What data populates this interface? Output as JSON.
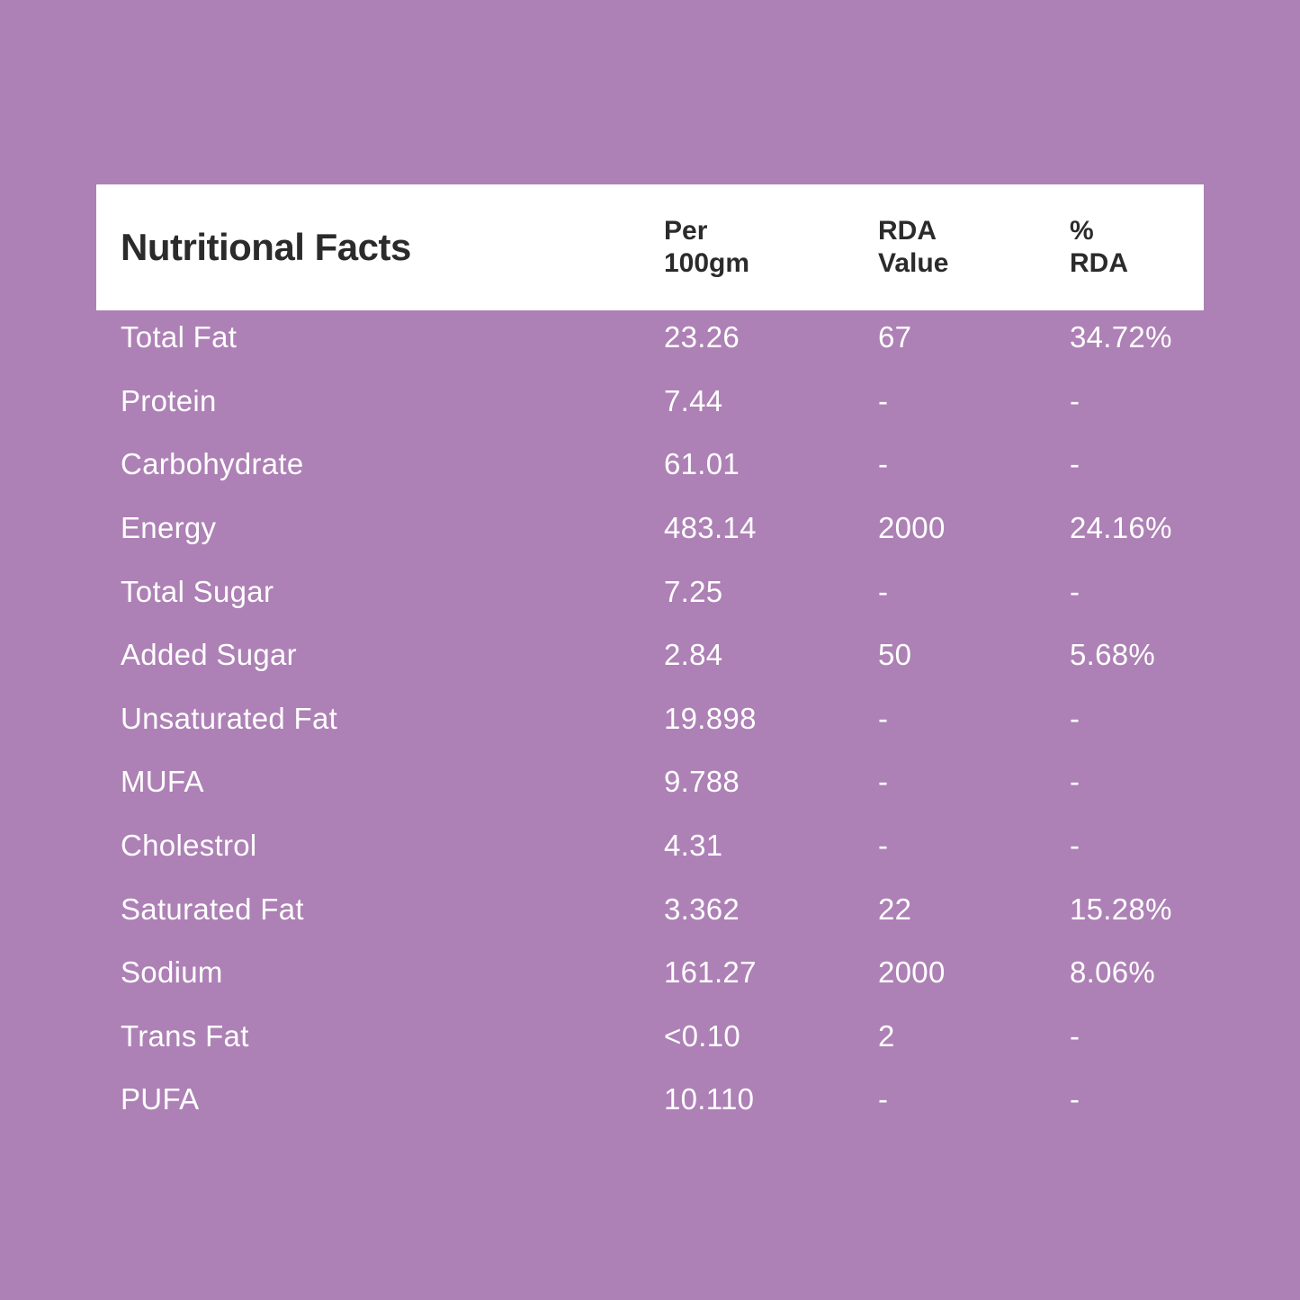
{
  "page": {
    "background_color": "#AD81B5",
    "header_bg_color": "#FFFFFF",
    "header_text_color": "#2B2B2B",
    "row_text_color": "#FFFFFF"
  },
  "table": {
    "title": "Nutritional Facts",
    "columns": [
      {
        "label": "Per\n100gm"
      },
      {
        "label": "RDA\nValue"
      },
      {
        "label": "%\nRDA"
      }
    ],
    "rows": [
      {
        "label": "Total Fat",
        "per_100gm": "23.26",
        "rda_value": "67",
        "pct_rda": "34.72%"
      },
      {
        "label": "Protein",
        "per_100gm": "7.44",
        "rda_value": "-",
        "pct_rda": "-"
      },
      {
        "label": "Carbohydrate",
        "per_100gm": "61.01",
        "rda_value": "-",
        "pct_rda": "-"
      },
      {
        "label": "Energy",
        "per_100gm": "483.14",
        "rda_value": "2000",
        "pct_rda": "24.16%"
      },
      {
        "label": "Total Sugar",
        "per_100gm": "7.25",
        "rda_value": "-",
        "pct_rda": "-"
      },
      {
        "label": "Added Sugar",
        "per_100gm": "2.84",
        "rda_value": "50",
        "pct_rda": "5.68%"
      },
      {
        "label": "Unsaturated Fat",
        "per_100gm": "19.898",
        "rda_value": "-",
        "pct_rda": "-"
      },
      {
        "label": "MUFA",
        "per_100gm": "9.788",
        "rda_value": "-",
        "pct_rda": "-"
      },
      {
        "label": "Cholestrol",
        "per_100gm": "4.31",
        "rda_value": "-",
        "pct_rda": "-"
      },
      {
        "label": "Saturated Fat",
        "per_100gm": "3.362",
        "rda_value": "22",
        "pct_rda": "15.28%"
      },
      {
        "label": "Sodium",
        "per_100gm": "161.27",
        "rda_value": "2000",
        "pct_rda": "8.06%"
      },
      {
        "label": "Trans Fat",
        "per_100gm": "<0.10",
        "rda_value": "2",
        "pct_rda": "-"
      },
      {
        "label": "PUFA",
        "per_100gm": "10.110",
        "rda_value": "-",
        "pct_rda": "-"
      }
    ]
  }
}
